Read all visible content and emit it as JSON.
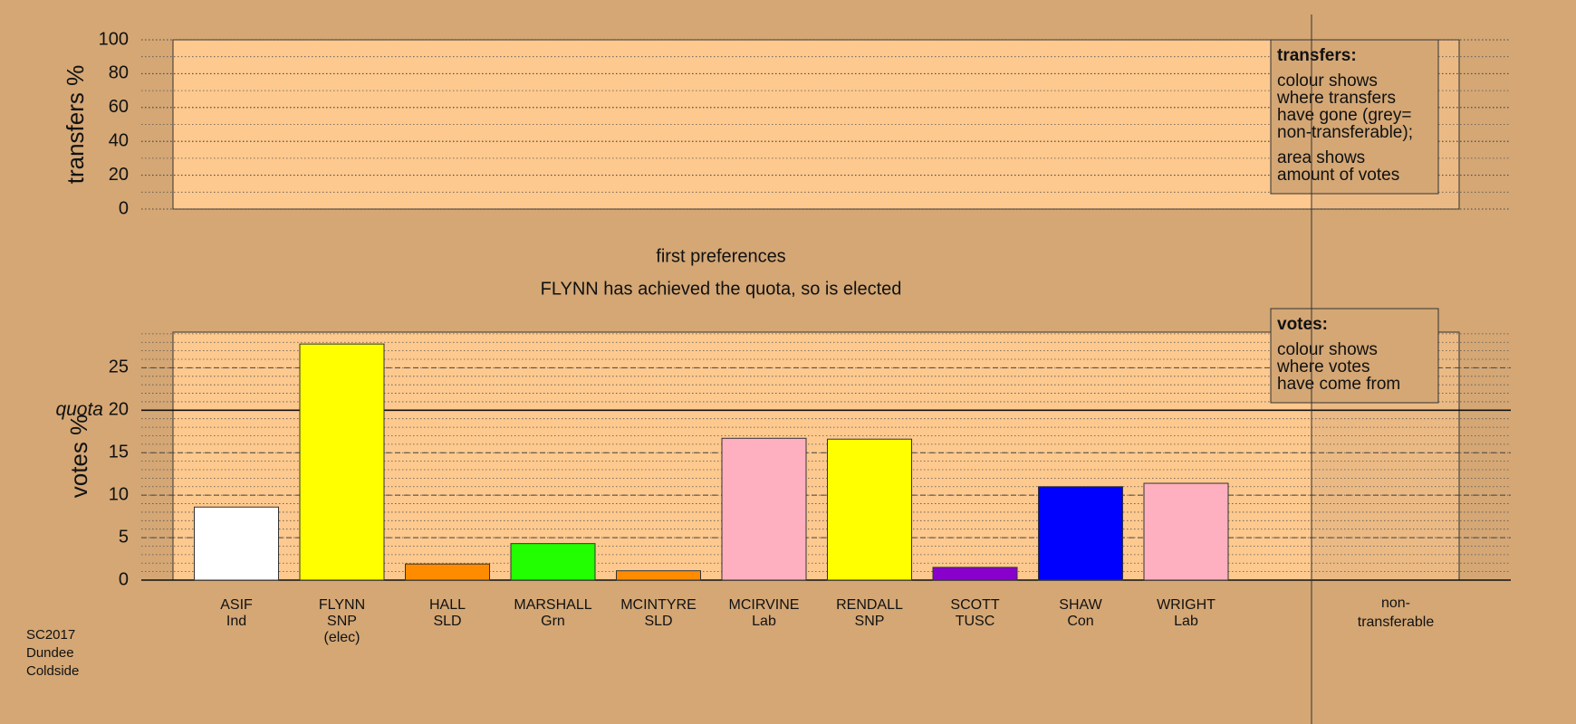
{
  "chart_data": [
    {
      "type": "area",
      "ylabel": "transfers %",
      "ylim": [
        0,
        100
      ],
      "yticks": [
        0,
        20,
        40,
        60,
        80,
        100
      ],
      "minor_grid_step": 10,
      "series": [],
      "note": {
        "heading": "transfers:",
        "paragraphs": [
          [
            "colour shows",
            "where transfers",
            "have gone (grey=",
            "non-transferable);"
          ],
          [
            "area shows",
            "amount of votes"
          ]
        ]
      }
    },
    {
      "type": "bar",
      "title": "first preferences",
      "subtitle": "FLYNN has achieved the quota, so is elected",
      "ylabel": "votes %",
      "ylim": [
        0,
        29.2
      ],
      "yticks": [
        0,
        5,
        10,
        15,
        20,
        25
      ],
      "minor_grid_step": 1,
      "quota": {
        "value": 20,
        "label": "quota"
      },
      "categories": [
        [
          "ASIF",
          "Ind"
        ],
        [
          "FLYNN",
          "SNP",
          "(elec)"
        ],
        [
          "HALL",
          "SLD"
        ],
        [
          "MARSHALL",
          "Grn"
        ],
        [
          "MCINTYRE",
          "SLD"
        ],
        [
          "MCIRVINE",
          "Lab"
        ],
        [
          "RENDALL",
          "SNP"
        ],
        [
          "SCOTT",
          "TUSC"
        ],
        [
          "SHAW",
          "Con"
        ],
        [
          "WRIGHT",
          "Lab"
        ]
      ],
      "values": [
        8.6,
        27.8,
        1.9,
        4.3,
        1.1,
        16.7,
        16.6,
        1.5,
        11.0,
        11.4
      ],
      "colors": [
        "#ffffff",
        "#ffff00",
        "#ff8c00",
        "#22ff00",
        "#ff8c00",
        "#ffb0c0",
        "#ffff00",
        "#8800cc",
        "#0000ff",
        "#ffb0c0"
      ],
      "extra_category": [
        "non-",
        "transferable"
      ],
      "note": {
        "heading": "votes:",
        "paragraphs": [
          [
            "colour shows",
            "where votes",
            "have come from"
          ]
        ]
      }
    }
  ],
  "footer": [
    "SC2017",
    "Dundee",
    "Coldside"
  ]
}
